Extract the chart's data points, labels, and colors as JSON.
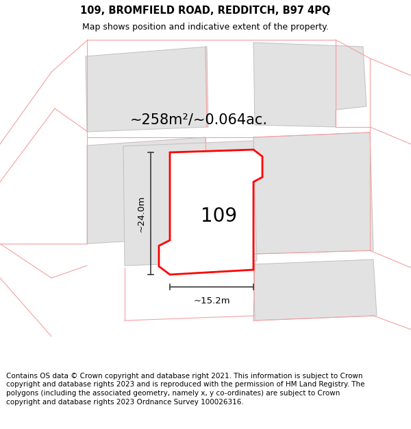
{
  "title_line1": "109, BROMFIELD ROAD, REDDITCH, B97 4PQ",
  "title_line2": "Map shows position and indicative extent of the property.",
  "area_label": "~258m²/~0.064ac.",
  "number_label": "109",
  "dim_vertical": "~24.0m",
  "dim_horizontal": "~15.2m",
  "footer_text": "Contains OS data © Crown copyright and database right 2021. This information is subject to Crown copyright and database rights 2023 and is reproduced with the permission of HM Land Registry. The polygons (including the associated geometry, namely x, y co-ordinates) are subject to Crown copyright and database rights 2023 Ordnance Survey 100026316.",
  "bg_color": "#ffffff",
  "map_bg": "#ffffff",
  "gray_fill": "#e2e2e2",
  "red_line_color": "#f5a0a0",
  "gray_line_color": "#c0c0c0",
  "plot_edge_color": "#ff0000",
  "dim_line_color": "#3a3a3a",
  "title_fontsize": 10.5,
  "subtitle_fontsize": 9,
  "area_fontsize": 15,
  "number_fontsize": 20,
  "dim_fontsize": 9.5,
  "footer_fontsize": 7.5
}
